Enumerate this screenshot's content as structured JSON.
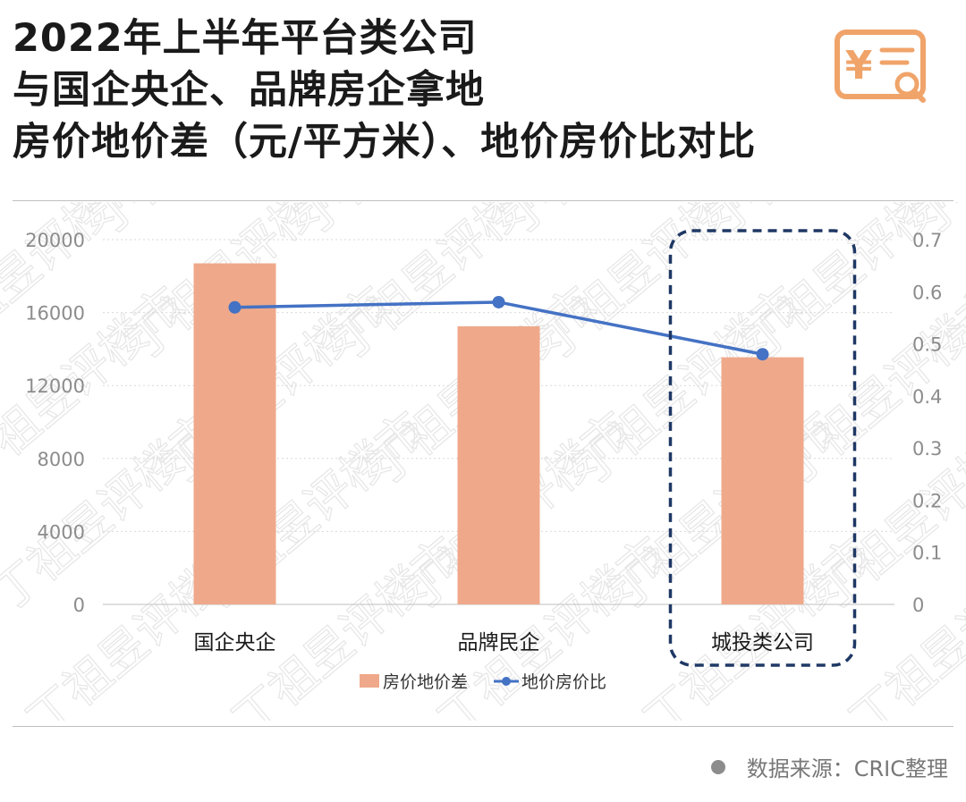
{
  "title": {
    "line1": "2022年上半年平台类公司",
    "line2": "与国企央企、品牌房企拿地",
    "line3": "房价地价差（元/平方米）、地价房价比对比"
  },
  "source": "数据来源：CRIC整理",
  "logo_icon": "yuan-receipt-search-icon",
  "watermark": "丁祖昱评楼市",
  "colors": {
    "bar": "#EFA98A",
    "line": "#4472C4",
    "highlight": "#1F3864",
    "axis_text": "#8c8c8c",
    "grid": "#d9d9d9",
    "logo": "#F0A46A"
  },
  "chart_data": {
    "type": "bar",
    "categories": [
      "国企央企",
      "品牌民企",
      "城投类公司"
    ],
    "series": [
      {
        "name": "房价地价差",
        "type": "bar",
        "axis": "left",
        "values": [
          18700,
          15250,
          13550
        ]
      },
      {
        "name": "地价房价比",
        "type": "line",
        "axis": "right",
        "values": [
          0.57,
          0.58,
          0.48
        ]
      }
    ],
    "y_left": {
      "min": 0,
      "max": 20000,
      "ticks": [
        0,
        4000,
        8000,
        12000,
        16000,
        20000
      ]
    },
    "y_right": {
      "min": 0,
      "max": 0.7,
      "ticks": [
        "0",
        "0.1",
        "0.2",
        "0.3",
        "0.4",
        "0.5",
        "0.6",
        "0.7"
      ]
    },
    "highlighted_category": "城投类公司",
    "legend_position": "bottom-center",
    "grid": true
  }
}
